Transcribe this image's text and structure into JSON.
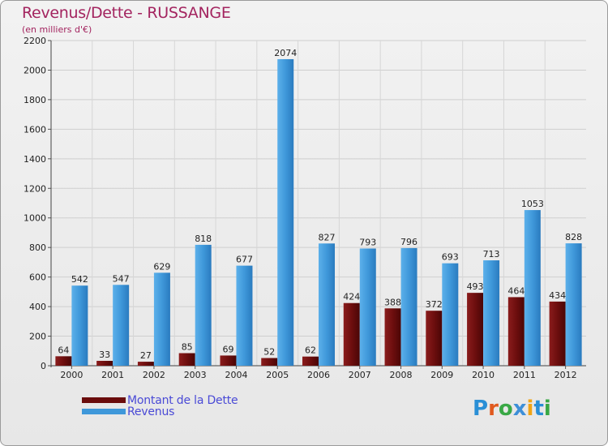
{
  "title": "Revenus/Dette - RUSSANGE",
  "subtitle": "(en milliers d'€)",
  "logo": {
    "letters": [
      "P",
      "r",
      "o",
      "x",
      "i",
      "t",
      "i"
    ],
    "colors": [
      "#2a8fd6",
      "#e05a1f",
      "#39a845",
      "#3d8fd8",
      "#f0a416",
      "#2a8fd6",
      "#39a845"
    ]
  },
  "legend": [
    {
      "label": "Montant de la Dette",
      "color": "#6a0c0c"
    },
    {
      "label": "Revenus",
      "color": "#3f98da"
    }
  ],
  "chart_data": {
    "type": "bar",
    "title": "Revenus/Dette - RUSSANGE",
    "ylabel": "(en milliers d'€)",
    "xlabel": "",
    "ylim": [
      0,
      2200
    ],
    "yticks": [
      0,
      200,
      400,
      600,
      800,
      1000,
      1200,
      1400,
      1600,
      1800,
      2000,
      2200
    ],
    "grid": true,
    "legend_position": "bottom-left",
    "categories": [
      "2000",
      "2001",
      "2002",
      "2003",
      "2004",
      "2005",
      "2006",
      "2007",
      "2008",
      "2009",
      "2010",
      "2011",
      "2012"
    ],
    "series": [
      {
        "name": "Montant de la Dette",
        "values": [
          64,
          33,
          27,
          85,
          69,
          52,
          62,
          424,
          388,
          372,
          493,
          464,
          434
        ]
      },
      {
        "name": "Revenus",
        "values": [
          542,
          547,
          629,
          818,
          677,
          2074,
          827,
          793,
          796,
          693,
          713,
          1053,
          828
        ]
      }
    ]
  }
}
